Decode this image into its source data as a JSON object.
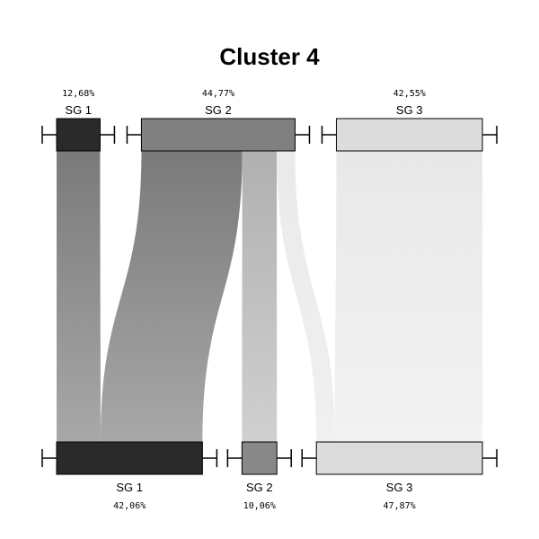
{
  "chart_data": {
    "type": "sankey",
    "title": "Cluster 4",
    "top_nodes": [
      {
        "name": "SG 1",
        "pct_label": "12,68%",
        "value": 12.68,
        "color": "#2a2a2a"
      },
      {
        "name": "SG 2",
        "pct_label": "44,77%",
        "value": 44.77,
        "color": "#808080"
      },
      {
        "name": "SG 3",
        "pct_label": "42,55%",
        "value": 42.55,
        "color": "#dcdcdc"
      }
    ],
    "bottom_nodes": [
      {
        "name": "SG 1",
        "pct_label": "42,06%",
        "value": 42.06,
        "color": "#2a2a2a"
      },
      {
        "name": "SG 2",
        "pct_label": "10,06%",
        "value": 10.06,
        "color": "#888888"
      },
      {
        "name": "SG 3",
        "pct_label": "47,87%",
        "value": 47.87,
        "color": "#dcdcdc"
      }
    ],
    "flows": [
      {
        "from": 0,
        "to": 0,
        "value": 12.68,
        "color_top": "#7a7a7a",
        "color_bottom": "#a8a8a8"
      },
      {
        "from": 1,
        "to": 0,
        "value": 29.38,
        "color_top": "#7a7a7a",
        "color_bottom": "#a8a8a8"
      },
      {
        "from": 1,
        "to": 1,
        "value": 10.06,
        "color_top": "#b0b0b0",
        "color_bottom": "#d0d0d0"
      },
      {
        "from": 1,
        "to": 2,
        "value": 5.33,
        "color_top": "#eaeaea",
        "color_bottom": "#f0f0f0"
      },
      {
        "from": 2,
        "to": 2,
        "value": 42.55,
        "color_top": "#e8e8e8",
        "color_bottom": "#f2f2f2"
      }
    ]
  }
}
